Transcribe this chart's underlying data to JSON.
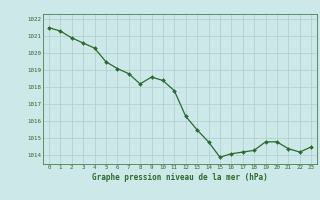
{
  "x": [
    0,
    1,
    2,
    3,
    4,
    5,
    6,
    7,
    8,
    9,
    10,
    11,
    12,
    13,
    14,
    15,
    16,
    17,
    18,
    19,
    20,
    21,
    22,
    23
  ],
  "y": [
    1021.5,
    1021.3,
    1020.9,
    1020.6,
    1020.3,
    1019.5,
    1019.1,
    1018.8,
    1018.2,
    1018.6,
    1018.4,
    1017.8,
    1016.3,
    1015.5,
    1014.8,
    1013.9,
    1014.1,
    1014.2,
    1014.3,
    1014.8,
    1014.8,
    1014.4,
    1014.2,
    1014.5
  ],
  "line_color": "#2d6a2d",
  "marker_color": "#2d6a2d",
  "bg_color": "#cce8e8",
  "grid_color": "#b0cece",
  "xlabel": "Graphe pression niveau de la mer (hPa)",
  "xlabel_color": "#2d6a2d",
  "ylim": [
    1013.5,
    1022.3
  ],
  "yticks": [
    1014,
    1015,
    1016,
    1017,
    1018,
    1019,
    1020,
    1021,
    1022
  ],
  "xticks": [
    0,
    1,
    2,
    3,
    4,
    5,
    6,
    7,
    8,
    9,
    10,
    11,
    12,
    13,
    14,
    15,
    16,
    17,
    18,
    19,
    20,
    21,
    22,
    23
  ],
  "tick_label_color": "#2d6a2d",
  "spine_color": "#2d6a2d"
}
